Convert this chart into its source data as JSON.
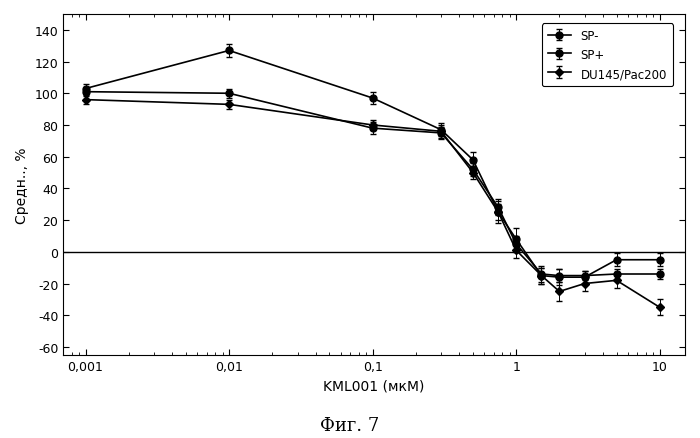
{
  "title": "",
  "xlabel": "KML001 (мкМ)",
  "ylabel": "Средн.., %",
  "fig_title": "Фиг. 7",
  "ylim": [
    -65,
    150
  ],
  "yticks": [
    -60,
    -40,
    -20,
    0,
    20,
    40,
    60,
    80,
    100,
    120,
    140
  ],
  "xtick_labels": [
    "0,001",
    "0,01",
    "0,1",
    "1",
    "10"
  ],
  "xtick_values": [
    0.001,
    0.01,
    0.1,
    1.0,
    10.0
  ],
  "SP_minus_x": [
    0.001,
    0.01,
    0.1,
    0.3,
    0.5,
    0.75,
    1.0,
    1.5,
    2.0,
    3.0,
    5.0,
    10.0
  ],
  "SP_minus_y": [
    101,
    100,
    78,
    75,
    52,
    28,
    5,
    -14,
    -15,
    -15,
    -14,
    -14
  ],
  "SP_minus_err": [
    3,
    3,
    4,
    4,
    4,
    5,
    5,
    5,
    4,
    3,
    3,
    3
  ],
  "SP_plus_x": [
    0.001,
    0.01,
    0.1,
    0.3,
    0.5,
    0.75,
    1.0,
    1.5,
    2.0,
    3.0,
    5.0,
    10.0
  ],
  "SP_plus_y": [
    103,
    127,
    97,
    77,
    58,
    25,
    8,
    -15,
    -16,
    -16,
    -5,
    -5
  ],
  "SP_plus_err": [
    3,
    4,
    4,
    4,
    5,
    7,
    7,
    5,
    5,
    4,
    4,
    4
  ],
  "DU145_x": [
    0.001,
    0.01,
    0.1,
    0.3,
    0.5,
    0.75,
    1.0,
    1.5,
    2.0,
    3.0,
    5.0,
    10.0
  ],
  "DU145_y": [
    96,
    93,
    80,
    76,
    50,
    25,
    1,
    -15,
    -25,
    -20,
    -18,
    -35
  ],
  "DU145_err": [
    3,
    3,
    3,
    4,
    4,
    5,
    5,
    5,
    6,
    5,
    5,
    5
  ],
  "line_color": "#000000",
  "marker_size": 5,
  "linewidth": 1.2,
  "legend_labels": [
    "SP-",
    "SP+",
    "DU145/Pac200"
  ],
  "background_color": "#ffffff"
}
